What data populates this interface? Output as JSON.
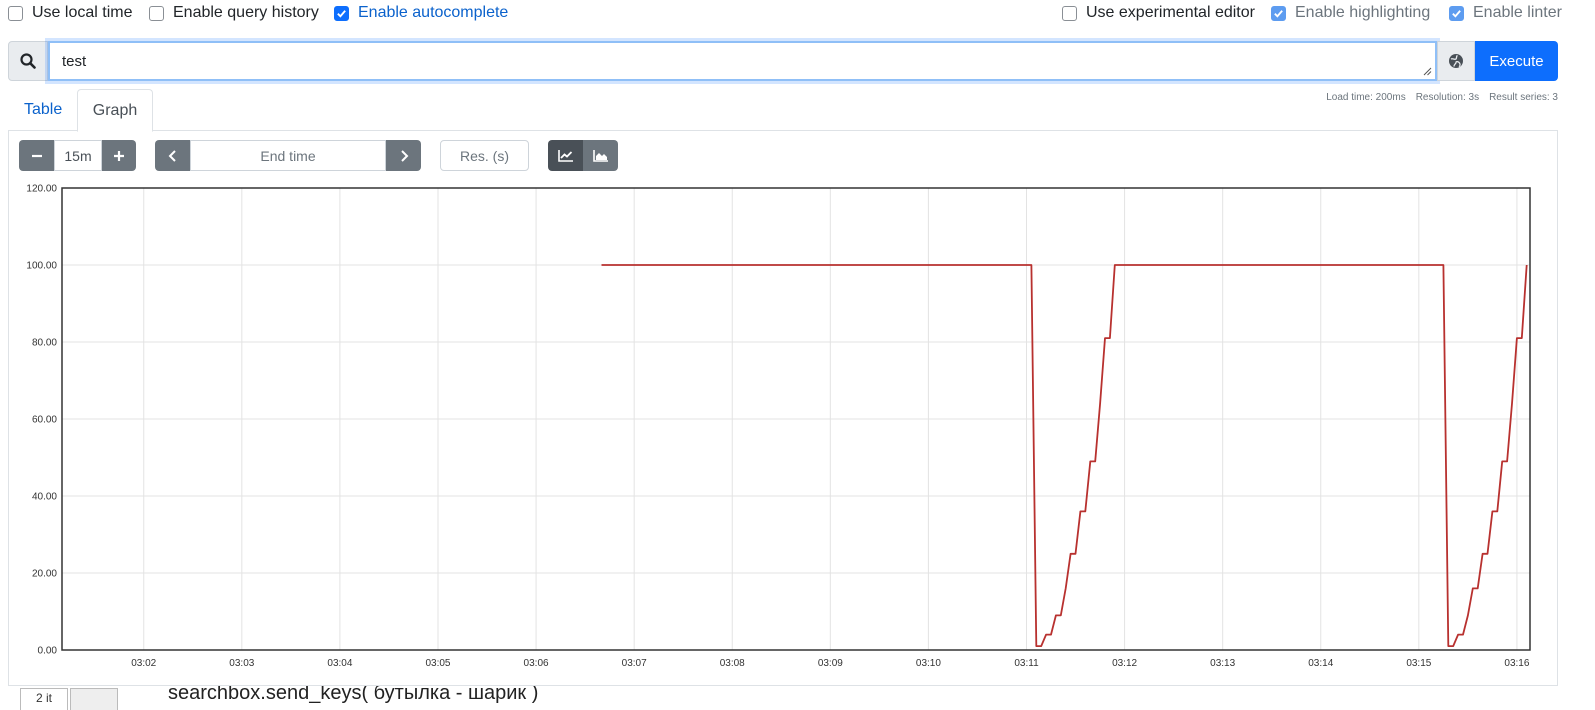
{
  "options": [
    {
      "label": "Use local time",
      "checked": false
    },
    {
      "label": "Enable query history",
      "checked": false
    },
    {
      "label": "Enable autocomplete",
      "checked": true
    },
    {
      "label": "Use experimental editor",
      "checked": false
    },
    {
      "label": "Enable highlighting",
      "checked": true
    },
    {
      "label": "Enable linter",
      "checked": true
    }
  ],
  "query": {
    "value": "test",
    "execute_label": "Execute"
  },
  "tabs": {
    "table": "Table",
    "graph": "Graph",
    "active": "Graph"
  },
  "stats": {
    "load_time": "Load time: 200ms",
    "resolution": "Resolution: 3s",
    "result_series": "Result series: 3"
  },
  "controls": {
    "range": "15m",
    "end_time_placeholder": "End time",
    "resolution_placeholder": "Res. (s)",
    "range_minus_icon": "minus-icon",
    "range_plus_icon": "plus-icon",
    "prev_icon": "chevron-left-icon",
    "next_icon": "chevron-right-icon",
    "line_mode_icon": "line-chart-icon",
    "stacked_mode_icon": "area-chart-icon",
    "active_mode": "line"
  },
  "colors": {
    "accent": "#0d6efd",
    "series": "#b8312f"
  },
  "bottom": {
    "tab_label": "2 it",
    "text": "searchbox.send_keys( бутылка - шарик )"
  },
  "chart_data": {
    "type": "line",
    "ylim": [
      0,
      120
    ],
    "yticks": [
      "0.00",
      "20.00",
      "40.00",
      "60.00",
      "80.00",
      "100.00",
      "120.00"
    ],
    "xticks": [
      "03:02",
      "03:03",
      "03:04",
      "03:05",
      "03:06",
      "03:07",
      "03:08",
      "03:09",
      "03:10",
      "03:11",
      "03:12",
      "03:13",
      "03:14",
      "03:15",
      "03:16"
    ],
    "xlim": [
      "03:01:10",
      "03:16:08"
    ],
    "grid": true,
    "series": [
      {
        "x": [
          "03:06:40",
          "03:11:03",
          "03:11:06",
          "03:11:09",
          "03:11:12",
          "03:11:15",
          "03:11:18",
          "03:11:21",
          "03:11:24",
          "03:11:27",
          "03:11:30",
          "03:11:33",
          "03:11:36",
          "03:11:39",
          "03:11:42",
          "03:11:45",
          "03:11:48",
          "03:11:51",
          "03:11:54",
          "03:11:57",
          "03:15:15",
          "03:15:18",
          "03:15:21",
          "03:15:24",
          "03:15:27",
          "03:15:30",
          "03:15:33",
          "03:15:36",
          "03:15:39",
          "03:15:42",
          "03:15:45",
          "03:15:48",
          "03:15:51",
          "03:15:54",
          "03:15:57",
          "03:16:00",
          "03:16:03",
          "03:16:06"
        ],
        "y": [
          100,
          100,
          1,
          1,
          4,
          4,
          9,
          9,
          16,
          25,
          25,
          36,
          36,
          49,
          49,
          64,
          81,
          81,
          100,
          100,
          100,
          1,
          1,
          4,
          4,
          9,
          16,
          16,
          25,
          25,
          36,
          36,
          49,
          49,
          64,
          81,
          81,
          100
        ]
      }
    ]
  }
}
